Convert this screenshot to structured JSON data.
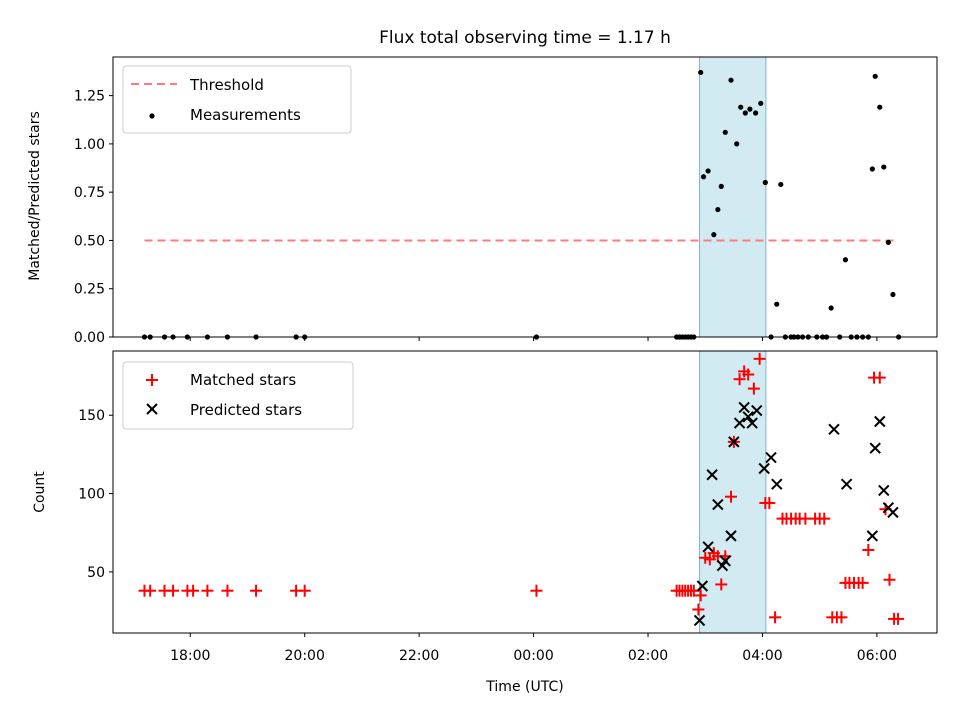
{
  "chart_data": {
    "type": "scatter",
    "title": "Flux total observing time = 1.17 h",
    "xlabel": "Time (UTC)",
    "x_units": "hours relative to 00:00 UTC",
    "xlim": [
      -7.35,
      7.05
    ],
    "x_ticks": [
      {
        "value": -6,
        "label": "18:00"
      },
      {
        "value": -4,
        "label": "20:00"
      },
      {
        "value": -2,
        "label": "22:00"
      },
      {
        "value": 0,
        "label": "00:00"
      },
      {
        "value": 2,
        "label": "02:00"
      },
      {
        "value": 4,
        "label": "04:00"
      },
      {
        "value": 6,
        "label": "06:00"
      }
    ],
    "highlight_span": [
      2.9,
      4.06
    ],
    "colors": {
      "threshold": "#ff7b7b",
      "matched": "#ff0000",
      "predicted": "#000000",
      "span": "#add8e6",
      "measure": "#000000"
    },
    "panels": {
      "top": {
        "ylabel": "Matched/Predicted stars",
        "ylim": [
          0,
          1.45
        ],
        "y_ticks": [
          {
            "value": 0,
            "label": "0.00"
          },
          {
            "value": 0.25,
            "label": "0.25"
          },
          {
            "value": 0.5,
            "label": "0.50"
          },
          {
            "value": 0.75,
            "label": "0.75"
          },
          {
            "value": 1.0,
            "label": "1.00"
          },
          {
            "value": 1.25,
            "label": "1.25"
          }
        ],
        "legend": {
          "position": "upper left",
          "threshold_label": "Threshold",
          "measurements_label": "Measurements"
        },
        "threshold": {
          "value": 0.5,
          "x_range": [
            -6.8,
            6.35
          ]
        },
        "measurements": [
          [
            -6.8,
            0
          ],
          [
            -6.7,
            0
          ],
          [
            -6.45,
            0
          ],
          [
            -6.3,
            0
          ],
          [
            -6.05,
            0
          ],
          [
            -5.7,
            0
          ],
          [
            -5.35,
            0
          ],
          [
            -4.85,
            0
          ],
          [
            -4.15,
            0
          ],
          [
            -4.0,
            0
          ],
          [
            0.05,
            0
          ],
          [
            2.5,
            0
          ],
          [
            2.55,
            0
          ],
          [
            2.6,
            0
          ],
          [
            2.65,
            0
          ],
          [
            2.7,
            0
          ],
          [
            2.75,
            0
          ],
          [
            2.8,
            0
          ],
          [
            2.92,
            1.37
          ],
          [
            2.97,
            0.83
          ],
          [
            3.05,
            0.86
          ],
          [
            3.15,
            0.53
          ],
          [
            3.22,
            0.66
          ],
          [
            3.28,
            0.78
          ],
          [
            3.35,
            1.06
          ],
          [
            3.45,
            1.33
          ],
          [
            3.55,
            1.0
          ],
          [
            3.62,
            1.19
          ],
          [
            3.7,
            1.16
          ],
          [
            3.78,
            1.18
          ],
          [
            3.88,
            1.16
          ],
          [
            3.97,
            1.21
          ],
          [
            4.05,
            0.8
          ],
          [
            4.15,
            0
          ],
          [
            4.25,
            0.17
          ],
          [
            4.32,
            0.79
          ],
          [
            4.4,
            0
          ],
          [
            4.5,
            0
          ],
          [
            4.55,
            0
          ],
          [
            4.62,
            0
          ],
          [
            4.7,
            0
          ],
          [
            4.8,
            0
          ],
          [
            4.95,
            0
          ],
          [
            5.05,
            0
          ],
          [
            5.12,
            0
          ],
          [
            5.2,
            0.15
          ],
          [
            5.35,
            0
          ],
          [
            5.45,
            0.4
          ],
          [
            5.55,
            0
          ],
          [
            5.65,
            0
          ],
          [
            5.75,
            0
          ],
          [
            5.85,
            0
          ],
          [
            5.92,
            0.87
          ],
          [
            5.97,
            1.35
          ],
          [
            6.05,
            1.19
          ],
          [
            6.12,
            0.88
          ],
          [
            6.2,
            0.49
          ],
          [
            6.28,
            0.22
          ],
          [
            6.38,
            0
          ]
        ]
      },
      "bottom": {
        "ylabel": "Count",
        "ylim": [
          11,
          191
        ],
        "y_ticks": [
          {
            "value": 50,
            "label": "50"
          },
          {
            "value": 100,
            "label": "100"
          },
          {
            "value": 150,
            "label": "150"
          }
        ],
        "legend": {
          "position": "upper left",
          "matched_label": "Matched stars",
          "predicted_label": "Predicted stars"
        },
        "series": [
          {
            "name": "Matched stars",
            "marker": "plus",
            "points": [
              [
                -6.8,
                38
              ],
              [
                -6.7,
                38
              ],
              [
                -6.45,
                38
              ],
              [
                -6.3,
                38
              ],
              [
                -6.05,
                38
              ],
              [
                -5.95,
                38
              ],
              [
                -5.7,
                38
              ],
              [
                -5.35,
                38
              ],
              [
                -4.85,
                38
              ],
              [
                -4.15,
                38
              ],
              [
                -4.0,
                38
              ],
              [
                0.05,
                38
              ],
              [
                2.5,
                38
              ],
              [
                2.55,
                38
              ],
              [
                2.6,
                38
              ],
              [
                2.65,
                38
              ],
              [
                2.7,
                38
              ],
              [
                2.75,
                38
              ],
              [
                2.8,
                38
              ],
              [
                2.88,
                26
              ],
              [
                2.92,
                35
              ],
              [
                3.0,
                59
              ],
              [
                3.08,
                58
              ],
              [
                3.15,
                62
              ],
              [
                3.22,
                60
              ],
              [
                3.28,
                42
              ],
              [
                3.35,
                60
              ],
              [
                3.45,
                98
              ],
              [
                3.5,
                133
              ],
              [
                3.6,
                173
              ],
              [
                3.68,
                178
              ],
              [
                3.75,
                176
              ],
              [
                3.85,
                167
              ],
              [
                3.95,
                186
              ],
              [
                4.05,
                94
              ],
              [
                4.12,
                94
              ],
              [
                4.22,
                21
              ],
              [
                4.35,
                84
              ],
              [
                4.42,
                84
              ],
              [
                4.5,
                84
              ],
              [
                4.58,
                84
              ],
              [
                4.65,
                84
              ],
              [
                4.75,
                84
              ],
              [
                4.92,
                84
              ],
              [
                5.0,
                84
              ],
              [
                5.08,
                84
              ],
              [
                5.22,
                21
              ],
              [
                5.3,
                21
              ],
              [
                5.38,
                21
              ],
              [
                5.45,
                43
              ],
              [
                5.52,
                43
              ],
              [
                5.6,
                43
              ],
              [
                5.68,
                43
              ],
              [
                5.75,
                43
              ],
              [
                5.85,
                64
              ],
              [
                5.95,
                174
              ],
              [
                6.05,
                174
              ],
              [
                6.15,
                90
              ],
              [
                6.22,
                45
              ],
              [
                6.3,
                20
              ],
              [
                6.37,
                20
              ]
            ]
          },
          {
            "name": "Predicted stars",
            "marker": "x",
            "points": [
              [
                2.9,
                19
              ],
              [
                2.95,
                41
              ],
              [
                3.05,
                66
              ],
              [
                3.12,
                112
              ],
              [
                3.22,
                93
              ],
              [
                3.3,
                54
              ],
              [
                3.35,
                57
              ],
              [
                3.45,
                73
              ],
              [
                3.5,
                133
              ],
              [
                3.6,
                145
              ],
              [
                3.68,
                155
              ],
              [
                3.75,
                149
              ],
              [
                3.82,
                145
              ],
              [
                3.9,
                153
              ],
              [
                4.03,
                116
              ],
              [
                4.15,
                123
              ],
              [
                4.25,
                106
              ],
              [
                5.25,
                141
              ],
              [
                5.47,
                106
              ],
              [
                5.92,
                73
              ],
              [
                5.97,
                129
              ],
              [
                6.05,
                146
              ],
              [
                6.12,
                102
              ],
              [
                6.2,
                91
              ],
              [
                6.28,
                88
              ]
            ]
          }
        ]
      }
    }
  }
}
